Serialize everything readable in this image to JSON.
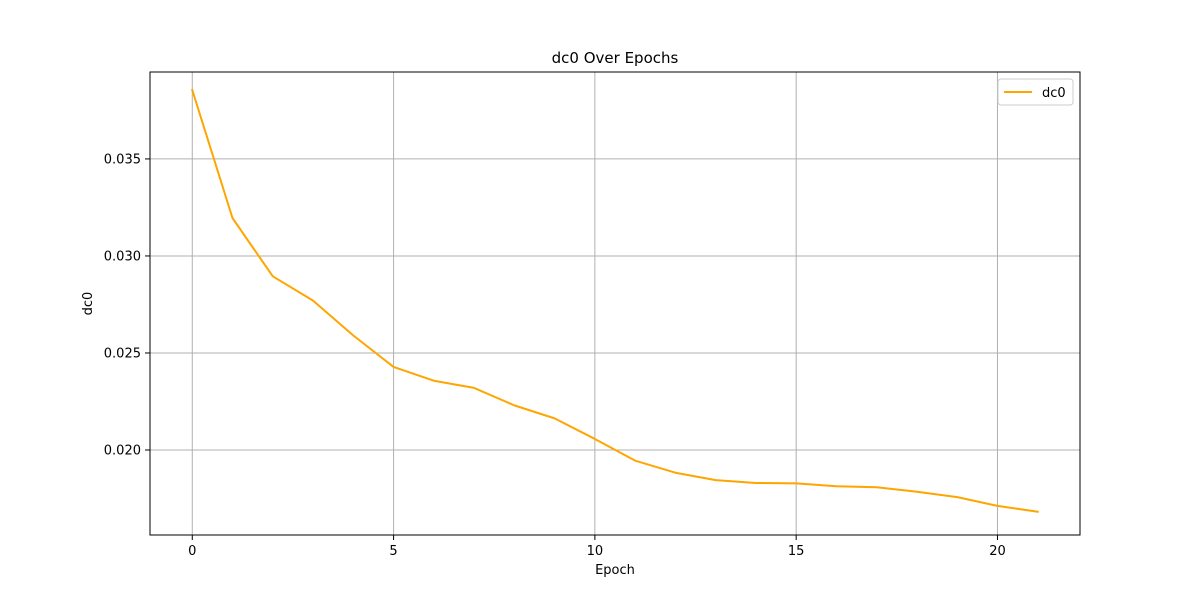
{
  "chart_data": {
    "type": "line",
    "title": "dc0 Over Epochs",
    "xlabel": "Epoch",
    "ylabel": "dc0",
    "xlim": [
      -1.05,
      22.05
    ],
    "ylim": [
      0.01562,
      0.03948
    ],
    "xticks": [
      0,
      5,
      10,
      15,
      20
    ],
    "yticks": [
      0.02,
      0.025,
      0.03,
      0.035
    ],
    "ytick_labels": [
      "0.020",
      "0.025",
      "0.030",
      "0.035"
    ],
    "grid": true,
    "legend_position": "top-right",
    "series": [
      {
        "name": "dc0",
        "color": "#ffa500",
        "x": [
          0,
          1,
          2,
          3,
          4,
          5,
          6,
          7,
          8,
          9,
          10,
          11,
          12,
          13,
          14,
          15,
          16,
          17,
          18,
          19,
          20,
          21
        ],
        "values": [
          0.03855,
          0.03195,
          0.02895,
          0.0277,
          0.0259,
          0.02428,
          0.02357,
          0.0232,
          0.0223,
          0.02163,
          0.02057,
          0.01945,
          0.01883,
          0.01845,
          0.0183,
          0.01828,
          0.01813,
          0.01808,
          0.01785,
          0.01757,
          0.01712,
          0.01682
        ]
      }
    ]
  }
}
